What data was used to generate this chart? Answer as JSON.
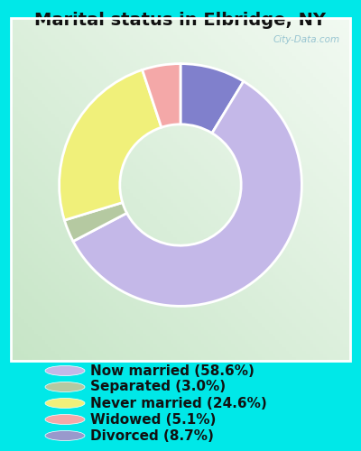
{
  "title": "Marital status in Elbridge, NY",
  "slices": [
    58.6,
    3.0,
    24.6,
    5.1,
    8.7
  ],
  "colors": [
    "#c4b8e8",
    "#b5c9a1",
    "#f0f07a",
    "#f4a8a8",
    "#8080cc"
  ],
  "labels": [
    "Now married (58.6%)",
    "Separated (3.0%)",
    "Never married (24.6%)",
    "Widowed (5.1%)",
    "Divorced (8.7%)"
  ],
  "legend_colors": [
    "#c4b8e8",
    "#b5c9a1",
    "#f0f07a",
    "#f4a8a8",
    "#9999cc"
  ],
  "bg_outer": "#00e8e8",
  "bg_chart_color1": "#d8f0d8",
  "bg_chart_color2": "#f0faf0",
  "title_fontsize": 14,
  "legend_fontsize": 11,
  "watermark": "City-Data.com"
}
